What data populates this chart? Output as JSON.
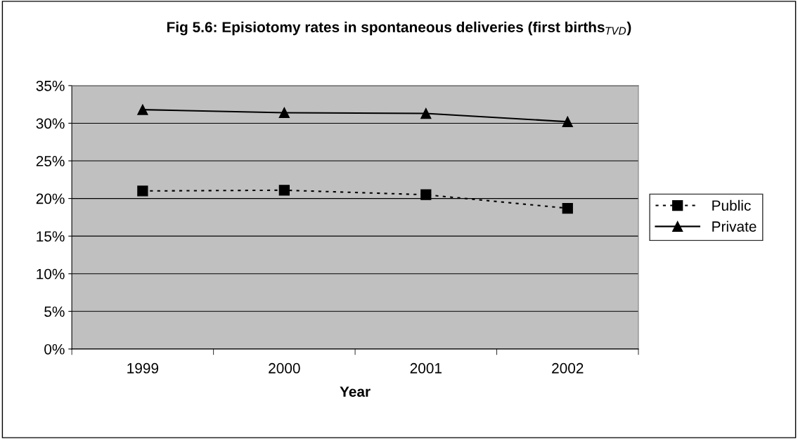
{
  "chart_data": {
    "type": "line",
    "title": "Fig 5.6: Episiotomy rates in spontaneous deliveries (first births$_{TVD}$)",
    "xlabel": "Year",
    "categories": [
      "1999",
      "2000",
      "2001",
      "2002"
    ],
    "series": [
      {
        "name": "Public",
        "color": "#000000",
        "marker": "square",
        "line_style": "dotted",
        "values": [
          21.0,
          21.1,
          20.5,
          18.7
        ]
      },
      {
        "name": "Private",
        "color": "#000000",
        "marker": "triangle",
        "line_style": "solid",
        "values": [
          31.8,
          31.4,
          31.3,
          30.2
        ]
      }
    ],
    "ylim": [
      0,
      35
    ],
    "yticks": [
      {
        "value": 0,
        "label": "0%"
      },
      {
        "value": 5,
        "label": "5%"
      },
      {
        "value": 10,
        "label": "10%"
      },
      {
        "value": 15,
        "label": "15%"
      },
      {
        "value": 20,
        "label": "20%"
      },
      {
        "value": 25,
        "label": "25%"
      },
      {
        "value": 30,
        "label": "30%"
      },
      {
        "value": 35,
        "label": "35%"
      }
    ],
    "grid": "y",
    "legend": "right"
  }
}
